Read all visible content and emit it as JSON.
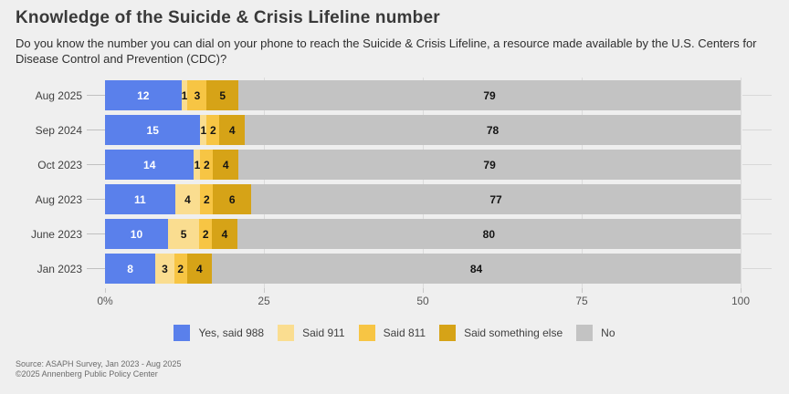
{
  "title": "Knowledge of the Suicide & Crisis Lifeline number",
  "subtitle": "Do you know the number you can dial on your phone to reach the Suicide & Crisis Lifeline, a resource made available by the U.S. Centers for Disease Control and Prevention (CDC)?",
  "source_line1": "Source: ASAPH Survey, Jan 2023 - Aug 2025",
  "source_line2": "©2025 Annenberg Public Policy Center",
  "colors": {
    "background": "#EFEFEF",
    "gridline": "#DBDBDB",
    "value_label_on_blue": "#FFFFFF",
    "value_label_dark": "#141414"
  },
  "chart_data": {
    "type": "bar",
    "orientation": "horizontal-stacked",
    "title": "Knowledge of the Suicide & Crisis Lifeline number",
    "categories": [
      "Aug 2025",
      "Sep 2024",
      "Oct 2023",
      "Aug 2023",
      "June 2023",
      "Jan 2023"
    ],
    "series": [
      {
        "name": "Yes, said 988",
        "color": "#5A80EB",
        "values": [
          12,
          15,
          14,
          11,
          10,
          8
        ]
      },
      {
        "name": "Said 911",
        "color": "#FADD90",
        "values": [
          1,
          1,
          1,
          4,
          5,
          3
        ]
      },
      {
        "name": "Said 811",
        "color": "#F7C544",
        "values": [
          3,
          2,
          2,
          2,
          2,
          2
        ]
      },
      {
        "name": "Said something else",
        "color": "#D6A317",
        "values": [
          5,
          4,
          4,
          6,
          4,
          4
        ]
      },
      {
        "name": "No",
        "color": "#C3C3C3",
        "values": [
          79,
          78,
          79,
          77,
          80,
          84
        ]
      }
    ],
    "xlim": [
      0,
      100
    ],
    "x_ticks": [
      {
        "label": "0%",
        "value": 0
      },
      {
        "label": "25",
        "value": 25
      },
      {
        "label": "50",
        "value": 50
      },
      {
        "label": "75",
        "value": 75
      },
      {
        "label": "100",
        "value": 100
      }
    ],
    "gridlines_at": [
      25,
      50,
      75,
      100
    ],
    "legend_position": "bottom"
  }
}
